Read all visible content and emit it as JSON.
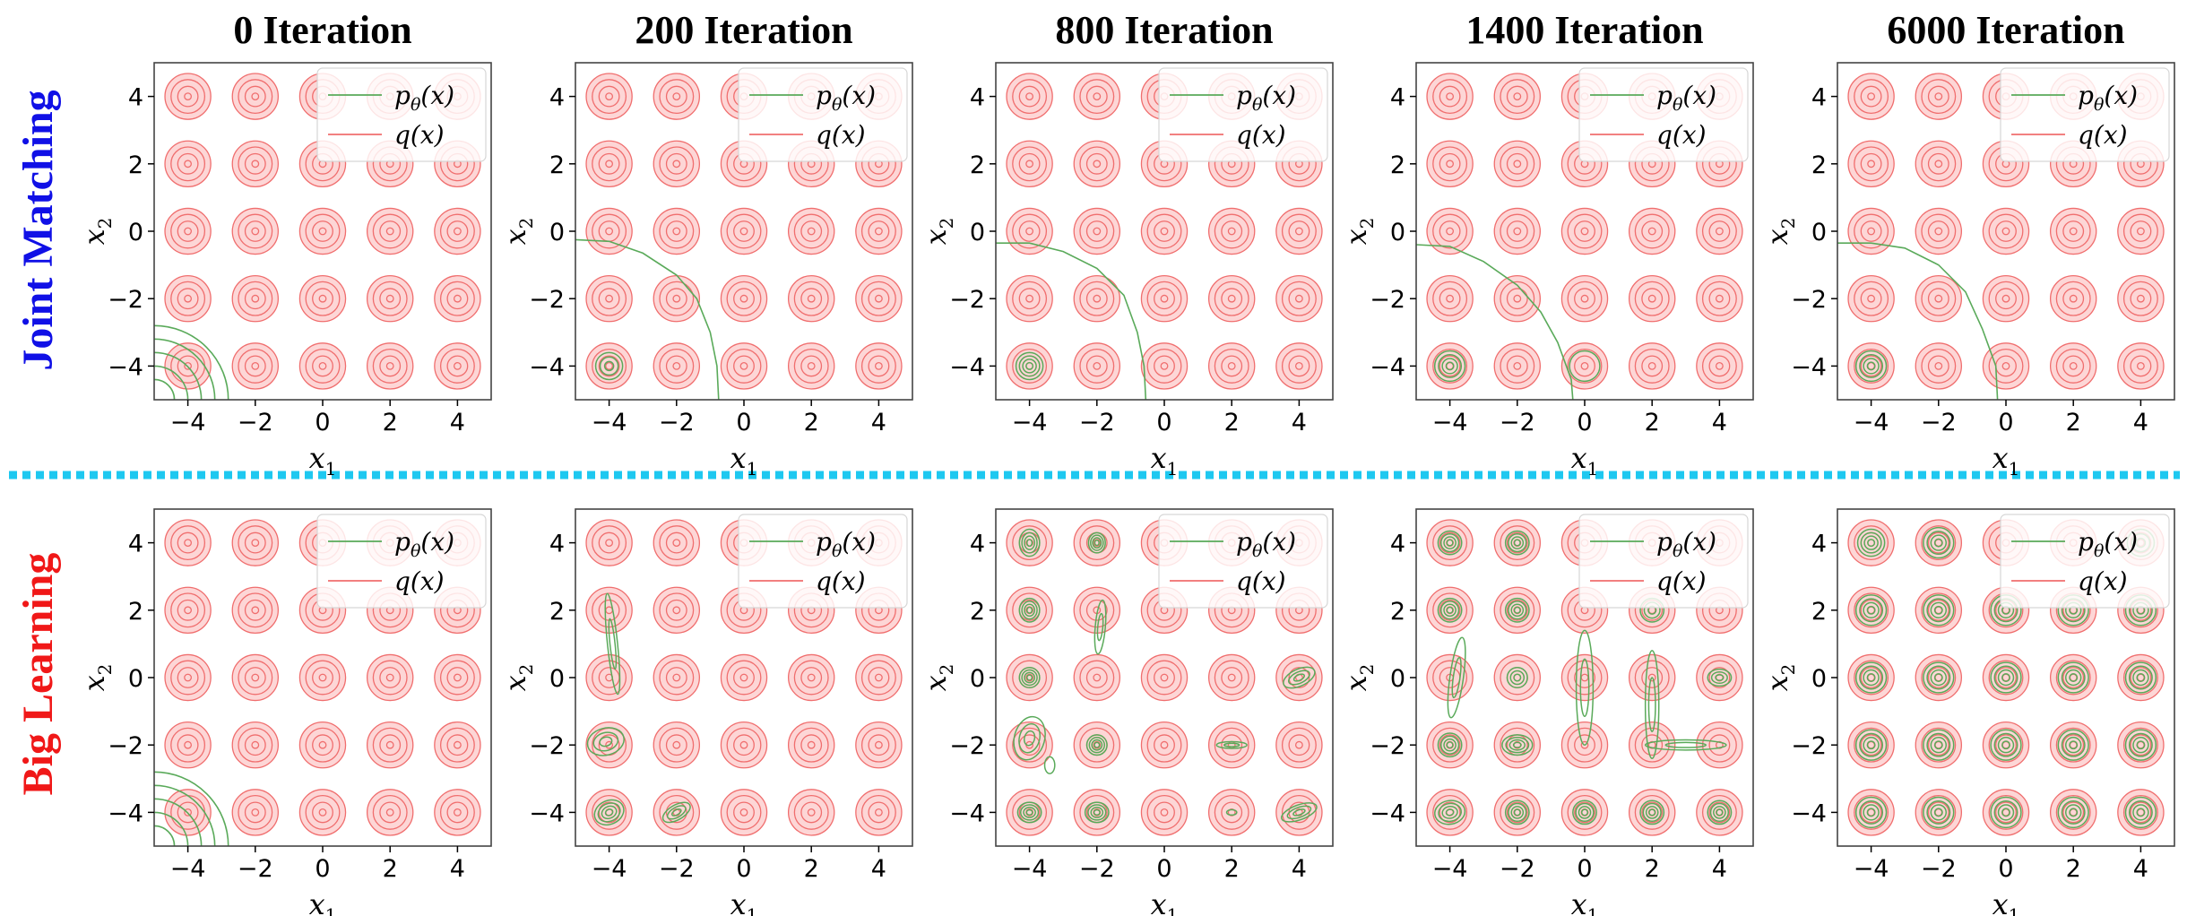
{
  "colors": {
    "p_theta": "#5aaa5a",
    "q": "#f06e6e",
    "q_fill": "#fdd6d6",
    "top_label": "#1010e6",
    "bottom_label": "#f01818",
    "divider": "#1ec8f0"
  },
  "column_titles": [
    "0 Iteration",
    "200 Iteration",
    "800 Iteration",
    "1400 Iteration",
    "6000 Iteration"
  ],
  "row_labels": [
    "Joint Matching",
    "Big Learning"
  ],
  "chart_data": {
    "type": "contour",
    "grid_size": [
      2,
      5
    ],
    "xlabel": "x",
    "xlabel_sub": "1",
    "ylabel": "x",
    "ylabel_sub": "2",
    "xlim": [
      -5,
      5
    ],
    "ylim": [
      -5,
      5
    ],
    "xticks": [
      -4,
      -2,
      0,
      2,
      4
    ],
    "yticks": [
      -4,
      -2,
      0,
      2,
      4
    ],
    "xtick_labels": [
      "−4",
      "−2",
      "0",
      "2",
      "4"
    ],
    "ytick_labels": [
      "−4",
      "−2",
      "0",
      "2",
      "4"
    ],
    "legend": {
      "position": "top-right",
      "entries": [
        {
          "label": "p",
          "sub": "θ",
          "suffix": "(x)",
          "series": "p_theta"
        },
        {
          "label": "q(x)",
          "sub": "",
          "suffix": "",
          "series": "q"
        }
      ]
    },
    "q_modes": {
      "centers_x": [
        -4,
        -2,
        0,
        2,
        4
      ],
      "centers_y": [
        -4,
        -2,
        0,
        2,
        4
      ],
      "contour_radii": [
        0.1,
        0.3,
        0.5,
        0.68
      ]
    },
    "panels": [
      {
        "row": 0,
        "col": 0,
        "p_theta": {
          "arcs": {
            "cx": -5,
            "cy": -5,
            "radii": [
              0.6,
              1.0,
              1.4,
              1.8,
              2.2
            ]
          }
        }
      },
      {
        "row": 0,
        "col": 1,
        "p_theta": {
          "boundary": [
            [
              -5,
              -0.25
            ],
            [
              -4,
              -0.3
            ],
            [
              -3,
              -0.65
            ],
            [
              -2,
              -1.3
            ],
            [
              -1.4,
              -2.0
            ],
            [
              -1,
              -3.0
            ],
            [
              -0.8,
              -4.0
            ],
            [
              -0.75,
              -5
            ]
          ],
          "modes": [
            {
              "x": -4,
              "y": -4,
              "rx": 0.4,
              "ry": 0.4,
              "rot": 0,
              "levels": 3
            }
          ]
        }
      },
      {
        "row": 0,
        "col": 2,
        "p_theta": {
          "boundary": [
            [
              -5,
              -0.35
            ],
            [
              -4,
              -0.35
            ],
            [
              -3,
              -0.6
            ],
            [
              -2,
              -1.1
            ],
            [
              -1.2,
              -1.9
            ],
            [
              -0.8,
              -3.0
            ],
            [
              -0.6,
              -4.0
            ],
            [
              -0.55,
              -5
            ]
          ],
          "modes": [
            {
              "x": -4,
              "y": -4,
              "rx": 0.4,
              "ry": 0.4,
              "rot": 0,
              "levels": 4
            }
          ]
        }
      },
      {
        "row": 0,
        "col": 3,
        "p_theta": {
          "boundary": [
            [
              -5,
              -0.4
            ],
            [
              -4,
              -0.45
            ],
            [
              -3,
              -0.9
            ],
            [
              -2,
              -1.6
            ],
            [
              -1.3,
              -2.4
            ],
            [
              -0.8,
              -3.3
            ],
            [
              -0.4,
              -4.4
            ],
            [
              -0.35,
              -5
            ]
          ],
          "modes": [
            {
              "x": -4,
              "y": -4,
              "rx": 0.45,
              "ry": 0.45,
              "rot": 0,
              "levels": 4
            },
            {
              "x": 0,
              "y": -4,
              "rx": 0.45,
              "ry": 0.45,
              "rot": 0,
              "levels": 1
            }
          ]
        }
      },
      {
        "row": 0,
        "col": 4,
        "p_theta": {
          "boundary": [
            [
              -5,
              -0.35
            ],
            [
              -4,
              -0.35
            ],
            [
              -3,
              -0.5
            ],
            [
              -2,
              -1.0
            ],
            [
              -1.2,
              -1.8
            ],
            [
              -0.7,
              -2.9
            ],
            [
              -0.3,
              -4.0
            ],
            [
              -0.25,
              -5
            ]
          ],
          "modes": [
            {
              "x": -4,
              "y": -4,
              "rx": 0.45,
              "ry": 0.45,
              "rot": 0,
              "levels": 4
            }
          ]
        }
      },
      {
        "row": 1,
        "col": 0,
        "p_theta": {
          "arcs": {
            "cx": -5,
            "cy": -5,
            "radii": [
              0.6,
              1.0,
              1.4,
              1.8,
              2.2
            ]
          }
        }
      },
      {
        "row": 1,
        "col": 1,
        "p_theta": {
          "modes": [
            {
              "x": -3.9,
              "y": 1.0,
              "rx": 0.15,
              "ry": 1.5,
              "rot": -6,
              "levels": 2
            },
            {
              "x": -4.1,
              "y": -1.9,
              "rx": 0.55,
              "ry": 0.4,
              "rot": -15,
              "levels": 3
            },
            {
              "x": -4.0,
              "y": -4.0,
              "rx": 0.45,
              "ry": 0.35,
              "rot": -25,
              "levels": 4
            },
            {
              "x": -2.0,
              "y": -4.0,
              "rx": 0.45,
              "ry": 0.22,
              "rot": -30,
              "levels": 3
            }
          ]
        }
      },
      {
        "row": 1,
        "col": 2,
        "p_theta": {
          "modes": [
            {
              "x": -4,
              "y": 4,
              "rx": 0.3,
              "ry": 0.4,
              "rot": 0,
              "levels": 4
            },
            {
              "x": -2,
              "y": 4,
              "rx": 0.25,
              "ry": 0.3,
              "rot": 0,
              "levels": 4
            },
            {
              "x": -4,
              "y": 2,
              "rx": 0.3,
              "ry": 0.35,
              "rot": 0,
              "levels": 4
            },
            {
              "x": -4,
              "y": 0,
              "rx": 0.3,
              "ry": 0.3,
              "rot": 0,
              "levels": 4
            },
            {
              "x": -1.9,
              "y": 1.5,
              "rx": 0.15,
              "ry": 0.8,
              "rot": 5,
              "levels": 2
            },
            {
              "x": -4,
              "y": -1.8,
              "rx": 0.45,
              "ry": 0.65,
              "rot": 15,
              "levels": 3
            },
            {
              "x": -3.4,
              "y": -2.6,
              "rx": 0.15,
              "ry": 0.25,
              "rot": 0,
              "levels": 1
            },
            {
              "x": -2,
              "y": -2,
              "rx": 0.3,
              "ry": 0.3,
              "rot": 0,
              "levels": 4
            },
            {
              "x": -4,
              "y": -4,
              "rx": 0.35,
              "ry": 0.3,
              "rot": 0,
              "levels": 4
            },
            {
              "x": -2,
              "y": -4,
              "rx": 0.35,
              "ry": 0.3,
              "rot": 0,
              "levels": 4
            },
            {
              "x": 2,
              "y": -2,
              "rx": 0.45,
              "ry": 0.1,
              "rot": 0,
              "levels": 2
            },
            {
              "x": 2,
              "y": -4,
              "rx": 0.15,
              "ry": 0.08,
              "rot": 0,
              "levels": 1
            },
            {
              "x": 4,
              "y": 0,
              "rx": 0.5,
              "ry": 0.25,
              "rot": -25,
              "levels": 3
            },
            {
              "x": 4,
              "y": -4,
              "rx": 0.55,
              "ry": 0.22,
              "rot": -20,
              "levels": 3
            }
          ]
        }
      },
      {
        "row": 1,
        "col": 3,
        "p_theta": {
          "modes": [
            {
              "x": -4,
              "y": 4,
              "rx": 0.35,
              "ry": 0.35,
              "rot": 0,
              "levels": 4
            },
            {
              "x": -2,
              "y": 4,
              "rx": 0.35,
              "ry": 0.35,
              "rot": 0,
              "levels": 4
            },
            {
              "x": -4,
              "y": 2,
              "rx": 0.35,
              "ry": 0.35,
              "rot": 0,
              "levels": 4
            },
            {
              "x": -2,
              "y": 2,
              "rx": 0.35,
              "ry": 0.35,
              "rot": 0,
              "levels": 4
            },
            {
              "x": 2,
              "y": 2,
              "rx": 0.35,
              "ry": 0.35,
              "rot": 0,
              "levels": 3
            },
            {
              "x": -3.8,
              "y": 0,
              "rx": 0.2,
              "ry": 1.2,
              "rot": 8,
              "levels": 2
            },
            {
              "x": -2,
              "y": 0,
              "rx": 0.3,
              "ry": 0.3,
              "rot": 0,
              "levels": 3
            },
            {
              "x": 0,
              "y": -0.3,
              "rx": 0.25,
              "ry": 1.7,
              "rot": 0,
              "levels": 2
            },
            {
              "x": 2.0,
              "y": -0.8,
              "rx": 0.2,
              "ry": 1.6,
              "rot": 0,
              "levels": 2
            },
            {
              "x": 4,
              "y": 0,
              "rx": 0.35,
              "ry": 0.25,
              "rot": 0,
              "levels": 3
            },
            {
              "x": -4,
              "y": -2,
              "rx": 0.35,
              "ry": 0.35,
              "rot": 0,
              "levels": 4
            },
            {
              "x": -2,
              "y": -2,
              "rx": 0.45,
              "ry": 0.3,
              "rot": 0,
              "levels": 4
            },
            {
              "x": 3.0,
              "y": -2,
              "rx": 1.2,
              "ry": 0.15,
              "rot": 0,
              "levels": 2
            },
            {
              "x": -4,
              "y": -4,
              "rx": 0.45,
              "ry": 0.35,
              "rot": -10,
              "levels": 4
            },
            {
              "x": -2,
              "y": -4,
              "rx": 0.35,
              "ry": 0.35,
              "rot": 0,
              "levels": 4
            },
            {
              "x": 0,
              "y": -4,
              "rx": 0.35,
              "ry": 0.35,
              "rot": 0,
              "levels": 4
            },
            {
              "x": 2,
              "y": -4,
              "rx": 0.35,
              "ry": 0.35,
              "rot": 0,
              "levels": 4
            },
            {
              "x": 4,
              "y": -4,
              "rx": 0.35,
              "ry": 0.35,
              "rot": 0,
              "levels": 4
            }
          ]
        }
      },
      {
        "row": 1,
        "col": 4,
        "p_theta": {
          "modes": [
            {
              "x": -4,
              "y": 4,
              "rx": 0.4,
              "ry": 0.4,
              "rot": 0,
              "levels": 4
            },
            {
              "x": -2,
              "y": 4,
              "rx": 0.45,
              "ry": 0.45,
              "rot": 0,
              "levels": 4
            },
            {
              "x": -4,
              "y": 2,
              "rx": 0.45,
              "ry": 0.45,
              "rot": 0,
              "levels": 4
            },
            {
              "x": -2,
              "y": 2,
              "rx": 0.45,
              "ry": 0.45,
              "rot": 0,
              "levels": 4
            },
            {
              "x": 0,
              "y": 2,
              "rx": 0.45,
              "ry": 0.45,
              "rot": 0,
              "levels": 4
            },
            {
              "x": 2,
              "y": 2,
              "rx": 0.45,
              "ry": 0.45,
              "rot": 0,
              "levels": 4
            },
            {
              "x": 4,
              "y": 2,
              "rx": 0.45,
              "ry": 0.45,
              "rot": 0,
              "levels": 4
            },
            {
              "x": -4,
              "y": 0,
              "rx": 0.45,
              "ry": 0.45,
              "rot": 0,
              "levels": 4
            },
            {
              "x": -2,
              "y": 0,
              "rx": 0.45,
              "ry": 0.45,
              "rot": 0,
              "levels": 4
            },
            {
              "x": 0,
              "y": 0,
              "rx": 0.45,
              "ry": 0.45,
              "rot": 0,
              "levels": 4
            },
            {
              "x": 2,
              "y": 0,
              "rx": 0.45,
              "ry": 0.45,
              "rot": 0,
              "levels": 4
            },
            {
              "x": 4,
              "y": 0,
              "rx": 0.45,
              "ry": 0.45,
              "rot": 0,
              "levels": 4
            },
            {
              "x": -4,
              "y": -2,
              "rx": 0.45,
              "ry": 0.45,
              "rot": 0,
              "levels": 4
            },
            {
              "x": -2,
              "y": -2,
              "rx": 0.45,
              "ry": 0.45,
              "rot": 0,
              "levels": 4
            },
            {
              "x": 0,
              "y": -2,
              "rx": 0.45,
              "ry": 0.45,
              "rot": 0,
              "levels": 4
            },
            {
              "x": 2,
              "y": -2,
              "rx": 0.45,
              "ry": 0.45,
              "rot": 0,
              "levels": 4
            },
            {
              "x": 4,
              "y": -2,
              "rx": 0.45,
              "ry": 0.45,
              "rot": 0,
              "levels": 4
            },
            {
              "x": -4,
              "y": -4,
              "rx": 0.45,
              "ry": 0.45,
              "rot": 0,
              "levels": 4
            },
            {
              "x": -2,
              "y": -4,
              "rx": 0.45,
              "ry": 0.45,
              "rot": 0,
              "levels": 4
            },
            {
              "x": 0,
              "y": -4,
              "rx": 0.45,
              "ry": 0.45,
              "rot": 0,
              "levels": 4
            },
            {
              "x": 2,
              "y": -4,
              "rx": 0.45,
              "ry": 0.45,
              "rot": 0,
              "levels": 4
            },
            {
              "x": 4,
              "y": -4,
              "rx": 0.45,
              "ry": 0.45,
              "rot": 0,
              "levels": 4
            },
            {
              "x": 4,
              "y": 4,
              "rx": 0.4,
              "ry": 0.4,
              "rot": 0,
              "levels": 3
            }
          ]
        }
      }
    ]
  }
}
